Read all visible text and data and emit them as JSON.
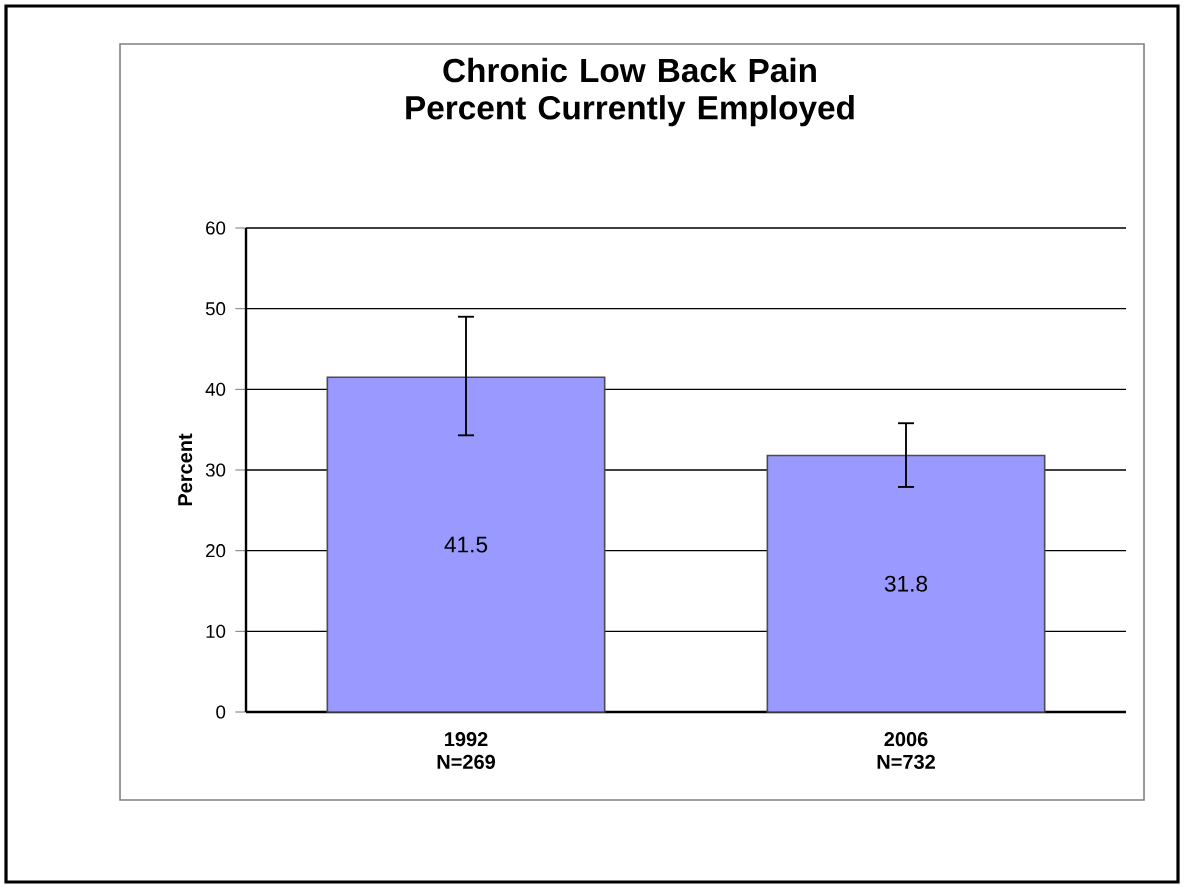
{
  "chart_data": {
    "type": "bar",
    "title": "Chronic Low Back Pain Percent Currently Employed",
    "ylabel": "Percent",
    "categories": [
      "1992 N=269",
      "2006 N=732"
    ],
    "values": [
      41.5,
      31.8
    ],
    "value_labels": [
      "41.5",
      "31.8"
    ],
    "errors": [
      [
        34.3,
        49.0
      ],
      [
        27.9,
        35.8
      ]
    ],
    "color": "#9999ff",
    "ylim": [
      0,
      60
    ],
    "yticks": [
      0,
      10,
      20,
      30,
      40,
      50,
      60
    ],
    "grid": "y"
  }
}
